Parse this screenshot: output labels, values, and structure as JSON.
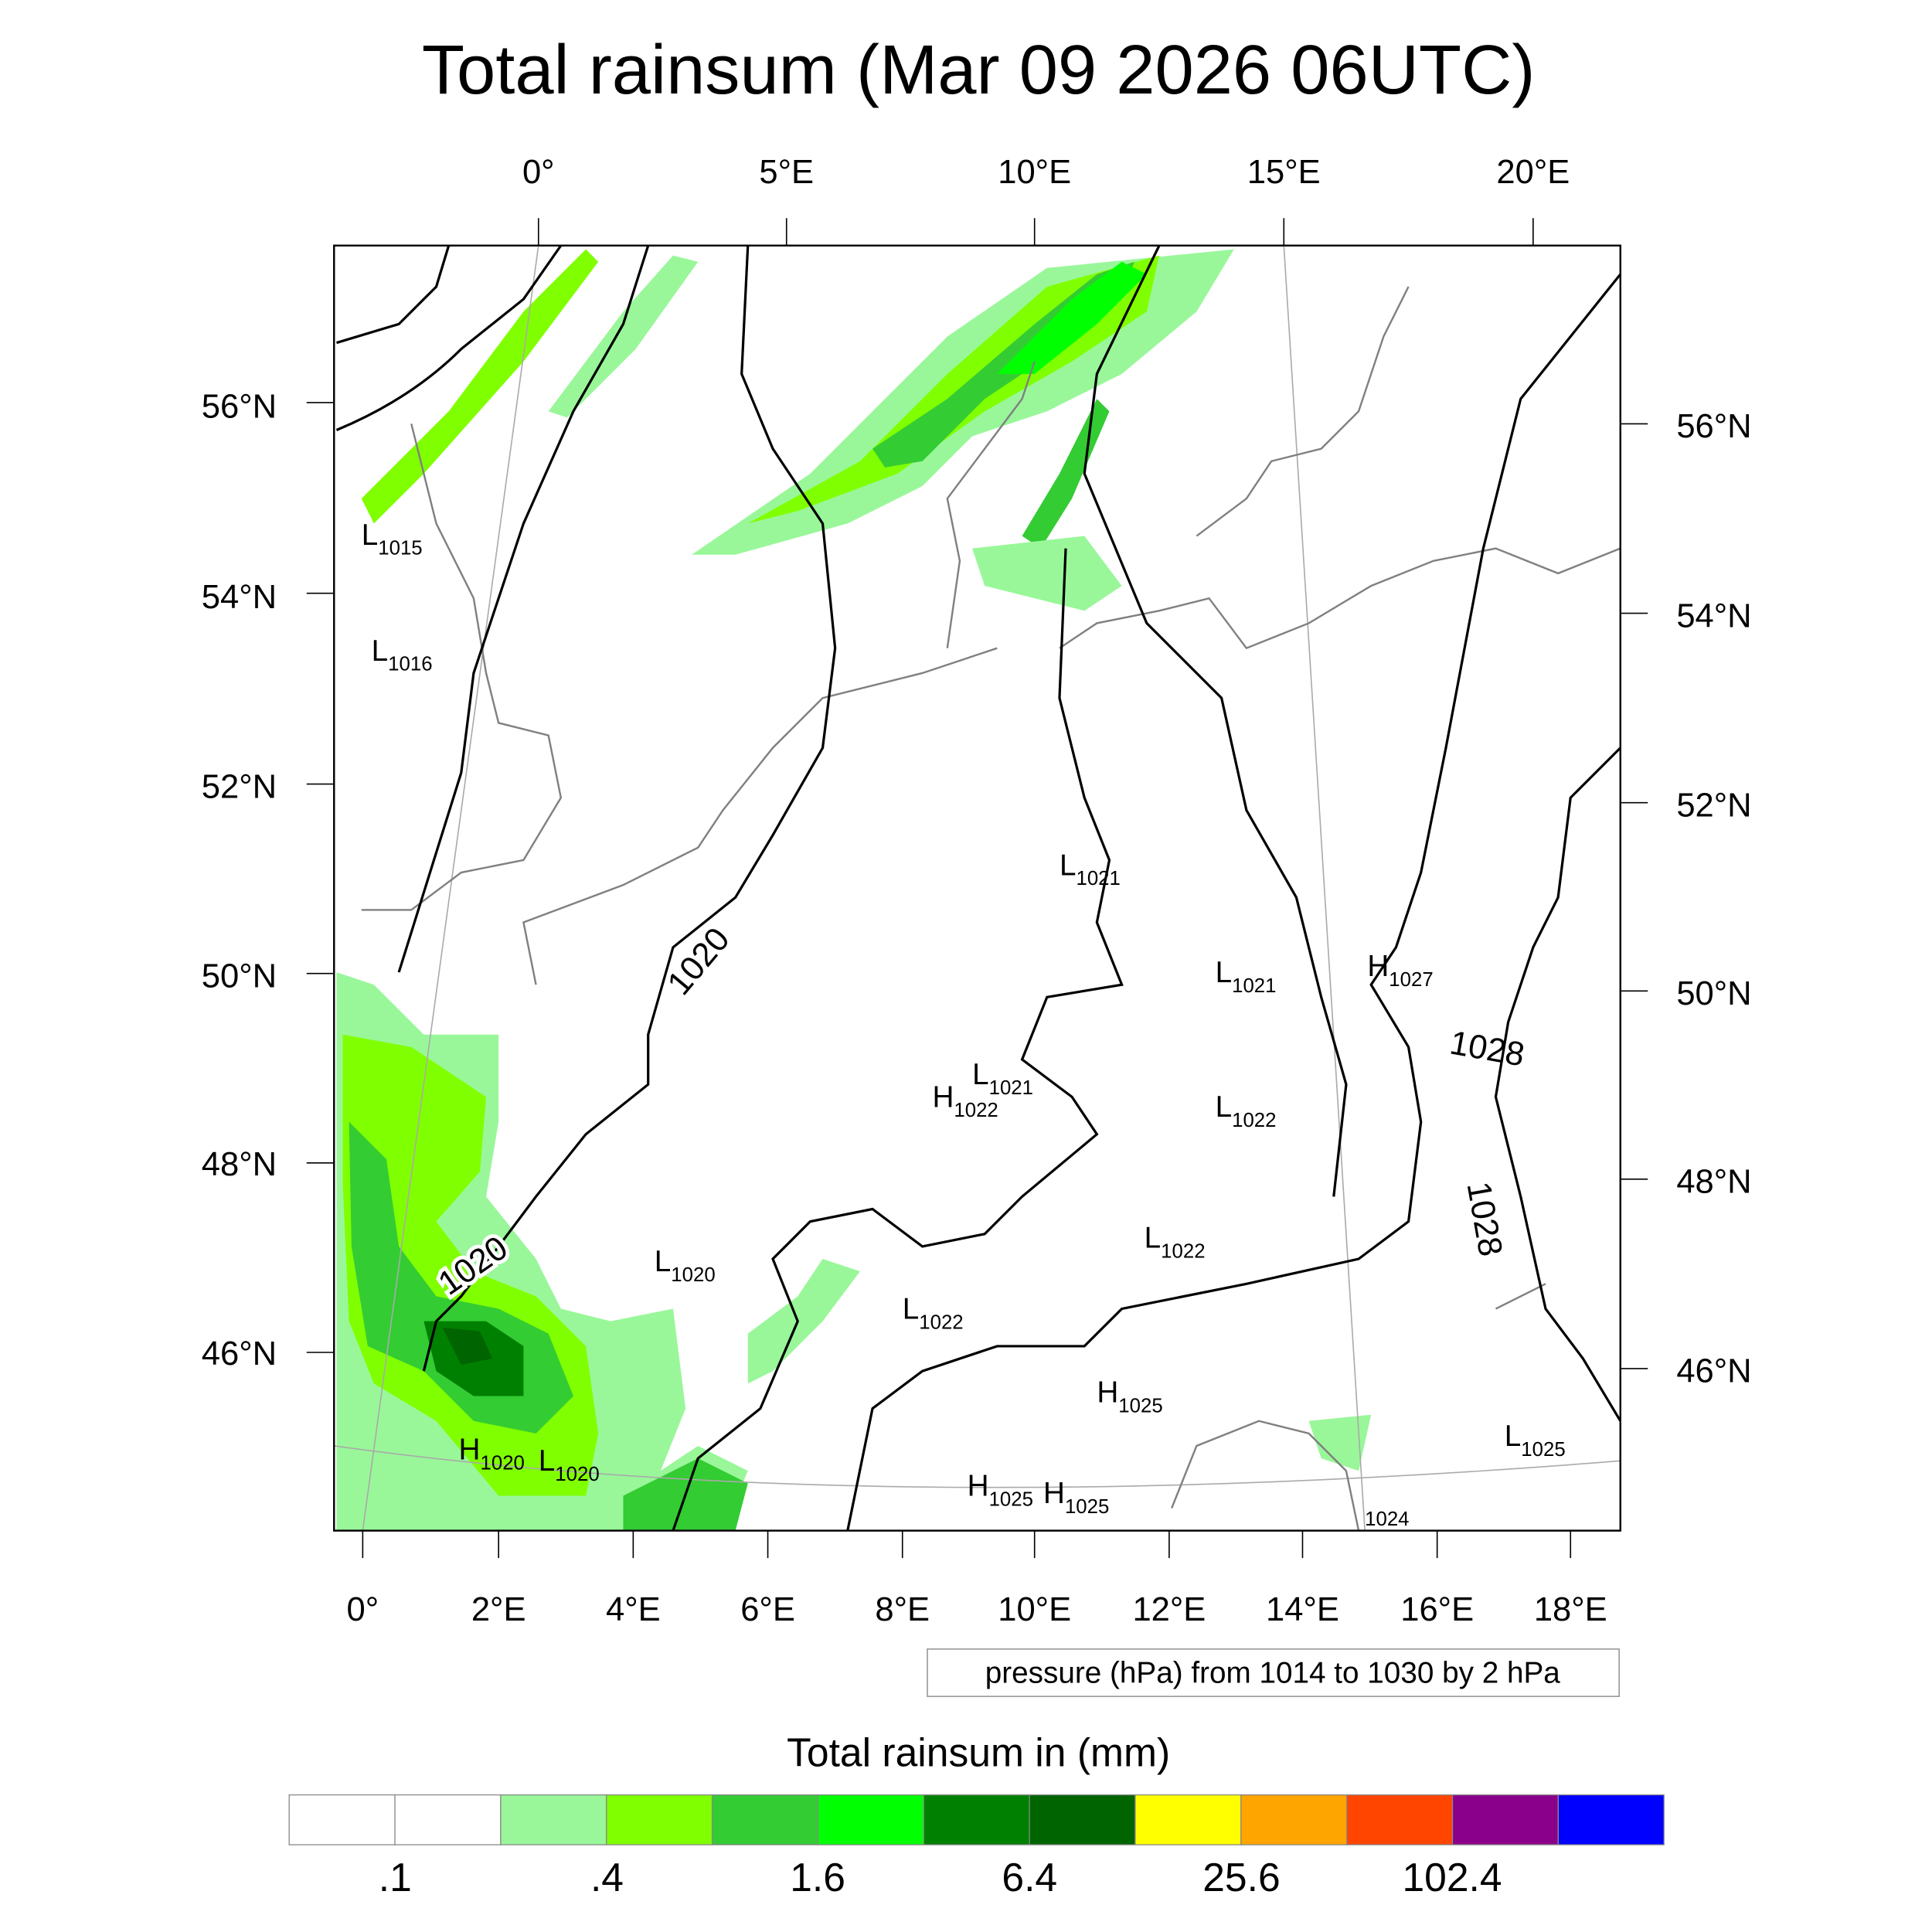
{
  "title": "Total rainsum (Mar 09 2026 06UTC)",
  "top_lon_labels": [
    "0°",
    "5°E",
    "10°E",
    "15°E",
    "20°E"
  ],
  "bottom_lon_labels": [
    "0°",
    "2°E",
    "4°E",
    "6°E",
    "8°E",
    "10°E",
    "12°E",
    "14°E",
    "16°E",
    "18°E"
  ],
  "left_lat_labels": [
    "56°N",
    "54°N",
    "52°N",
    "50°N",
    "48°N",
    "46°N"
  ],
  "right_lat_labels": [
    "56°N",
    "54°N",
    "52°N",
    "50°N",
    "48°N",
    "46°N"
  ],
  "pressure_centers": [
    {
      "type": "L",
      "value": "1015"
    },
    {
      "type": "L",
      "value": "1016"
    },
    {
      "type": "L",
      "value": "1021"
    },
    {
      "type": "L",
      "value": "1021"
    },
    {
      "type": "H",
      "value": "1027"
    },
    {
      "type": "L",
      "value": "1021"
    },
    {
      "type": "H",
      "value": "1022"
    },
    {
      "type": "L",
      "value": "1022"
    },
    {
      "type": "L",
      "value": "1020"
    },
    {
      "type": "L",
      "value": "1022"
    },
    {
      "type": "L",
      "value": "1022"
    },
    {
      "type": "H",
      "value": "1025"
    },
    {
      "type": "L",
      "value": "1025"
    },
    {
      "type": "H",
      "value": "1020"
    },
    {
      "type": "L",
      "value": "1020"
    },
    {
      "type": "H",
      "value": "1025"
    },
    {
      "type": "H",
      "value": "1025"
    },
    {
      "type": "",
      "value": "1024"
    }
  ],
  "contour_labels": [
    "1020",
    "1020",
    "1028",
    "1028"
  ],
  "contour_info": "pressure (hPa) from 1014 to 1030 by 2 hPa",
  "colorbar": {
    "title": "Total rainsum in (mm)",
    "colors": [
      "#ffffff",
      "#ffffff",
      "#99f799",
      "#80ff00",
      "#33cc33",
      "#00ff00",
      "#008000",
      "#006400",
      "#ffff00",
      "#ffa500",
      "#ff4500",
      "#8b008b",
      "#0000ff"
    ],
    "labels": [
      ".1",
      ".4",
      "1.6",
      "6.4",
      "25.6",
      "102.4"
    ]
  }
}
